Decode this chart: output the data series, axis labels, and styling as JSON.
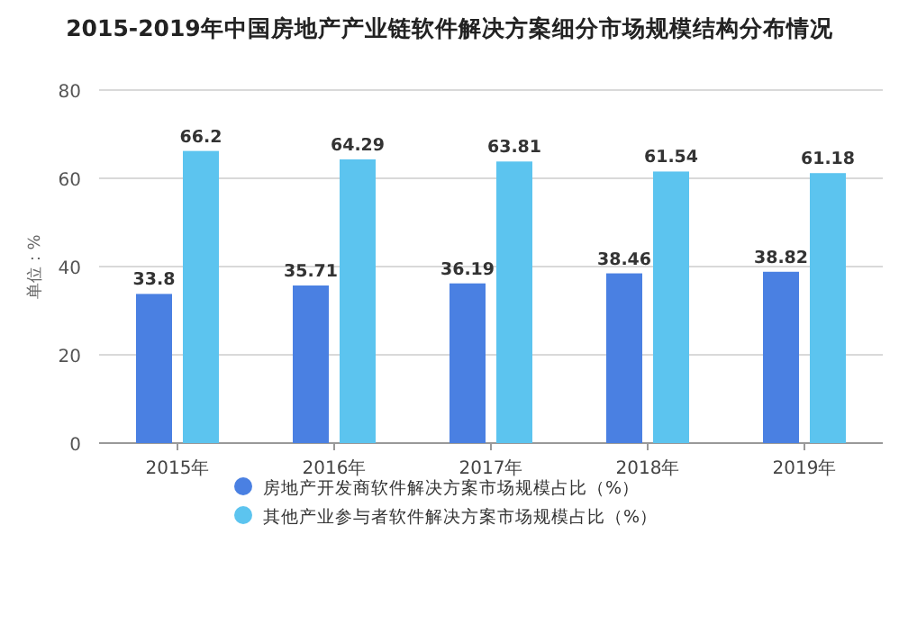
{
  "chart_data": {
    "type": "bar",
    "title": "2015-2019年中国房地产产业链软件解决方案细分市场规模结构分布情况",
    "ylabel": "单位：%",
    "categories": [
      "2015年",
      "2016年",
      "2017年",
      "2018年",
      "2019年"
    ],
    "series": [
      {
        "name": "房地产开发商软件解决方案市场规模占比（%）",
        "color": "#4a80e2",
        "values": [
          33.8,
          35.71,
          36.19,
          38.46,
          38.82
        ]
      },
      {
        "name": "其他产业参与者软件解决方案市场规模占比（%）",
        "color": "#5cc4ef",
        "values": [
          66.2,
          64.29,
          63.81,
          61.54,
          61.18
        ]
      }
    ],
    "ylim": [
      0,
      80
    ],
    "yticks": [
      0,
      20,
      40,
      60,
      80
    ],
    "grid": "y",
    "legend": "bottom",
    "data_labels": true
  }
}
